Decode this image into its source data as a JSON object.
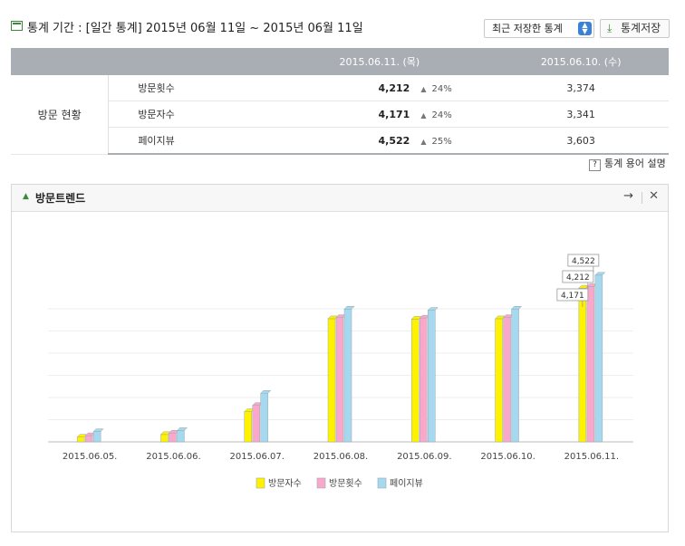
{
  "header": {
    "title_icon": "table-icon",
    "title": "통계 기간 : [일간 통계] 2015년 06월 11일 ~ 2015년 06월 11일",
    "select_value": "최근 저장한 통계",
    "save_label": "통계저장",
    "save_icon": "download-icon"
  },
  "table": {
    "col_cur": "2015.06.11. (목)",
    "col_prev": "2015.06.10. (수)",
    "category": "방문 현황",
    "rows": [
      {
        "label": "방문횟수",
        "cur": "4,212",
        "pct": "24%",
        "prev": "3,374"
      },
      {
        "label": "방문자수",
        "cur": "4,171",
        "pct": "24%",
        "prev": "3,341"
      },
      {
        "label": "페이지뷰",
        "cur": "4,522",
        "pct": "25%",
        "prev": "3,603"
      }
    ]
  },
  "help_label": "통계 용어 설명",
  "panel": {
    "title": "방문트렌드"
  },
  "chart_data": {
    "type": "bar",
    "categories": [
      "2015.06.05.",
      "2015.06.06.",
      "2015.06.07.",
      "2015.06.08.",
      "2015.06.09.",
      "2015.06.10.",
      "2015.06.11."
    ],
    "series": [
      {
        "name": "방문자수",
        "color": "#fff200",
        "values": [
          130,
          200,
          820,
          3341,
          3330,
          3341,
          4171
        ]
      },
      {
        "name": "방문횟수",
        "color": "#f9a8cc",
        "values": [
          170,
          240,
          990,
          3374,
          3360,
          3374,
          4212
        ]
      },
      {
        "name": "페이지뷰",
        "color": "#a6d8f0",
        "values": [
          280,
          310,
          1320,
          3603,
          3570,
          3603,
          4522
        ]
      }
    ],
    "data_labels": [
      "4,171",
      "4,212",
      "4,522"
    ],
    "ylim": [
      0,
      5500
    ],
    "legend_position": "bottom"
  }
}
